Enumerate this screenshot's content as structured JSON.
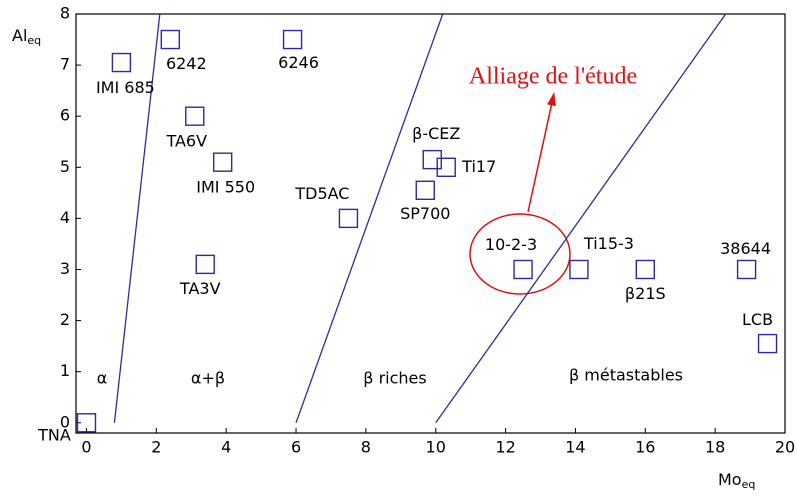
{
  "chart_data": {
    "type": "scatter",
    "xlabel": {
      "text": "Mo",
      "sub": "eq"
    },
    "ylabel": {
      "text": "Al",
      "sub": "eq"
    },
    "xlim": [
      -0.3,
      20
    ],
    "ylim": [
      -0.2,
      8
    ],
    "xticks": [
      0,
      2,
      4,
      6,
      8,
      10,
      12,
      14,
      16,
      18,
      20
    ],
    "yticks": [
      0,
      1,
      2,
      3,
      4,
      5,
      6,
      7,
      8
    ],
    "color": "#2a2aa8",
    "labels": [
      "TNA",
      "IMI 685",
      "6242",
      "6246",
      "TA6V",
      "IMI 550",
      "TD5AC",
      "β-CEZ",
      "Ti17",
      "SP700",
      "TA3V",
      "10-2-3",
      "Ti15-3",
      "β21S",
      "38644",
      "LCB"
    ],
    "x": [
      0,
      1,
      2.4,
      5.9,
      3.1,
      3.9,
      7.5,
      9.9,
      10.3,
      9.7,
      3.4,
      12.5,
      14.1,
      16.0,
      18.9,
      19.5
    ],
    "y": [
      0,
      7.05,
      7.5,
      7.5,
      6.0,
      5.1,
      4.0,
      5.15,
      5.0,
      4.55,
      3.1,
      3.0,
      3.0,
      3.0,
      3.0,
      1.55
    ],
    "lines": [
      {
        "x": [
          0.8,
          2.1
        ],
        "y": [
          0,
          8
        ]
      },
      {
        "x": [
          6,
          10.2
        ],
        "y": [
          0,
          8
        ]
      },
      {
        "x": [
          10,
          18.3
        ],
        "y": [
          0,
          8
        ]
      }
    ],
    "regions": [
      "α",
      "α+β",
      "β riches",
      "β métastables"
    ],
    "annotation": "Alliage de l'étude"
  }
}
